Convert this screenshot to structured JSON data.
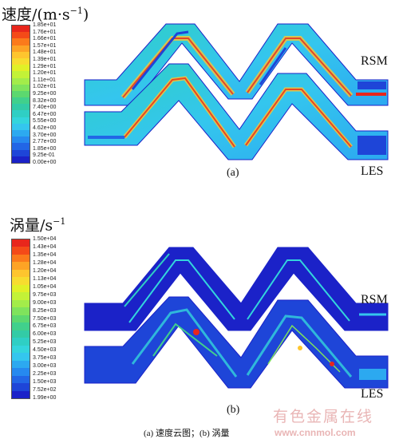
{
  "panel_a": {
    "legend_title": "速度/(m·s",
    "legend_title_sup": "−1",
    "legend_title_close": ")",
    "ticks": [
      "1.85e+01",
      "1.76e+01",
      "1.66e+01",
      "1.57e+01",
      "1.48e+01",
      "1.39e+01",
      "1.29e+01",
      "1.20e+01",
      "1.11e+01",
      "1.02e+01",
      "9.25e+00",
      "8.32e+00",
      "7.40e+00",
      "6.47e+00",
      "5.55e+00",
      "4.62e+00",
      "3.70e+00",
      "2.77e+00",
      "1.85e+00",
      "9.25e-01",
      "0.00e+00"
    ],
    "colors": [
      "#e8261c",
      "#f44a18",
      "#fb7a1b",
      "#fda325",
      "#fec52e",
      "#f7dc2f",
      "#e1f027",
      "#c3f237",
      "#a3ec4a",
      "#7fe35c",
      "#5cd86f",
      "#41d08c",
      "#33cba6",
      "#2fcfc4",
      "#33d5dc",
      "#34c6ee",
      "#2ca9f0",
      "#2689ef",
      "#2266e6",
      "#1e45d8",
      "#1b22c8"
    ],
    "label": "(a)",
    "model_top": "RSM",
    "model_bottom": "LES"
  },
  "panel_b": {
    "legend_title": "涡量/s",
    "legend_title_sup": "−1",
    "ticks": [
      "1.50e+04",
      "1.43e+04",
      "1.35e+04",
      "1.28e+04",
      "1.20e+04",
      "1.13e+04",
      "1.05e+04",
      "9.75e+03",
      "9.00e+03",
      "8.25e+03",
      "7.50e+03",
      "6.75e+03",
      "6.00e+03",
      "5.25e+03",
      "4.50e+03",
      "3.75e+03",
      "3.00e+03",
      "2.25e+03",
      "1.50e+03",
      "7.52e+02",
      "1.99e+00"
    ],
    "colors": [
      "#e8261c",
      "#f44a18",
      "#fb7a1b",
      "#fda325",
      "#fec52e",
      "#f7dc2f",
      "#e1f027",
      "#c3f237",
      "#a3ec4a",
      "#7fe35c",
      "#5cd86f",
      "#41d08c",
      "#33cba6",
      "#2fcfc4",
      "#33d5dc",
      "#34c6ee",
      "#2ca9f0",
      "#2689ef",
      "#2266e6",
      "#1e45d8",
      "#1b22c8"
    ],
    "label": "(b)",
    "model_top": "RSM",
    "model_bottom": "LES"
  },
  "caption": "(a) 速度云图；(b) 涡量",
  "watermark": {
    "cn": "有色金属在线",
    "url": "www.cnnmol.com"
  }
}
